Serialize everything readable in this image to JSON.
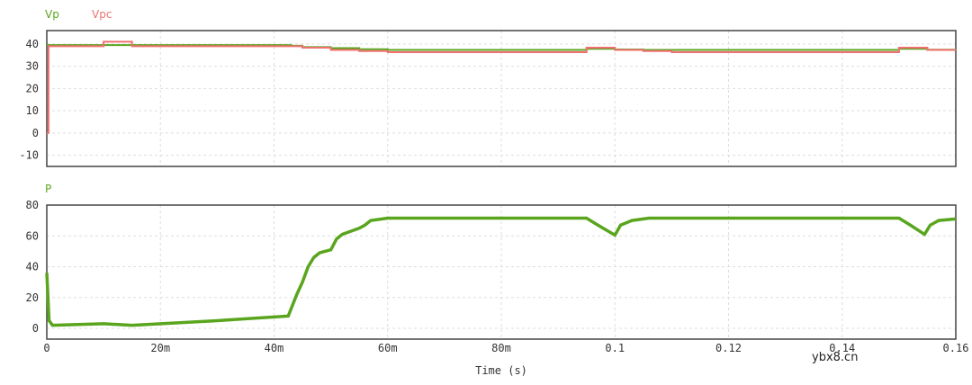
{
  "chart_data": [
    {
      "type": "line",
      "xlabel": "Time (s)",
      "xlim": [
        0,
        0.16
      ],
      "ylim": [
        -15,
        46
      ],
      "grid": true,
      "legend_placement": "top-left",
      "yticks": [
        "40",
        "30",
        "20",
        "10",
        "0",
        "-10"
      ],
      "ytick_values": [
        40,
        30,
        20,
        10,
        0,
        -10
      ],
      "series": [
        {
          "name": "Vp",
          "color": "#5aa51e",
          "step": true,
          "x": [
            0,
            0.0005,
            0.043,
            0.045,
            0.05,
            0.055,
            0.06,
            0.095,
            0.1,
            0.105,
            0.11,
            0.15,
            0.155,
            0.16
          ],
          "y": [
            39.5,
            39.5,
            39.2,
            38.6,
            38.1,
            37.6,
            37.3,
            37.8,
            37.5,
            37.3,
            37.3,
            37.8,
            37.4,
            37.3
          ]
        },
        {
          "name": "Vpc",
          "color": "#f07070",
          "step": true,
          "x": [
            0,
            0.0003,
            0.01,
            0.015,
            0.043,
            0.045,
            0.05,
            0.055,
            0.06,
            0.095,
            0.1,
            0.105,
            0.11,
            0.15,
            0.155,
            0.16
          ],
          "y": [
            0,
            39,
            41,
            39,
            39,
            38.3,
            37.3,
            36.8,
            36.3,
            38.3,
            37.3,
            36.8,
            36.3,
            38.3,
            37.3,
            37.3
          ]
        }
      ]
    },
    {
      "type": "line",
      "xlabel": "Time (s)",
      "xlim": [
        0,
        0.16
      ],
      "ylim": [
        -7,
        80
      ],
      "grid": true,
      "legend_placement": "top-left",
      "xticks": [
        "0",
        "20m",
        "40m",
        "60m",
        "80m",
        "0.1",
        "0.12",
        "0.14",
        "0.16"
      ],
      "xtick_values": [
        0,
        0.02,
        0.04,
        0.06,
        0.08,
        0.1,
        0.12,
        0.14,
        0.16
      ],
      "yticks": [
        "80",
        "60",
        "40",
        "20",
        "0"
      ],
      "ytick_values": [
        80,
        60,
        40,
        20,
        0
      ],
      "series": [
        {
          "name": "P",
          "color": "#5aa51e",
          "x": [
            0,
            0.0004,
            0.001,
            0.01,
            0.015,
            0.03,
            0.0425,
            0.044,
            0.045,
            0.046,
            0.047,
            0.048,
            0.05,
            0.051,
            0.052,
            0.055,
            0.056,
            0.057,
            0.06,
            0.095,
            0.097,
            0.1,
            0.101,
            0.103,
            0.106,
            0.11,
            0.15,
            0.152,
            0.1545,
            0.1555,
            0.157,
            0.16
          ],
          "y": [
            36,
            5,
            2,
            3,
            2,
            5,
            8,
            22,
            30,
            40,
            46,
            49,
            51,
            58,
            61,
            65,
            67,
            70,
            71.5,
            71.5,
            67,
            60.5,
            67,
            70,
            71.5,
            71.5,
            71.5,
            67,
            61,
            67,
            70,
            71
          ]
        }
      ]
    }
  ],
  "watermark": "ybx8.cn"
}
